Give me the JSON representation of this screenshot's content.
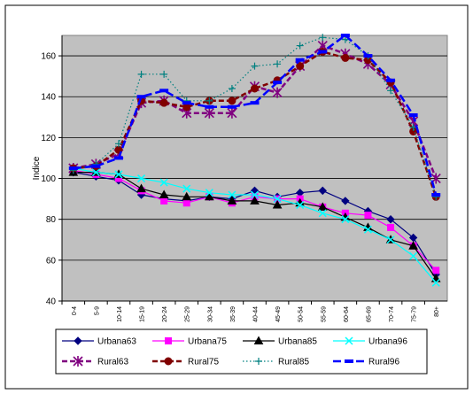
{
  "chart_data": {
    "type": "line",
    "ylabel": "Indice",
    "ylim": [
      40,
      170
    ],
    "yticks": [
      40,
      60,
      80,
      100,
      120,
      140,
      160
    ],
    "grid": true,
    "legend_position": "bottom",
    "categories": [
      "0-4",
      "5-9",
      "10-14",
      "15-19",
      "20-24",
      "25-29",
      "30-34",
      "35-39",
      "40-44",
      "45-49",
      "50-54",
      "55-59",
      "60-64",
      "65-69",
      "70-74",
      "75-79",
      "80+"
    ],
    "series": [
      {
        "name": "Urbana63",
        "color": "#000080",
        "style": "solid",
        "marker": "diamond",
        "values": [
          103,
          101,
          99,
          92,
          90,
          89,
          91,
          90,
          94,
          91,
          93,
          94,
          89,
          84,
          80,
          71,
          53
        ]
      },
      {
        "name": "Urbana75",
        "color": "#ff00ff",
        "style": "solid",
        "marker": "square",
        "values": [
          104,
          102,
          100,
          94,
          89,
          88,
          91,
          88,
          91,
          90,
          90,
          86,
          83,
          82,
          76,
          67,
          55
        ]
      },
      {
        "name": "Urbana85",
        "color": "#000000",
        "style": "solid",
        "marker": "triangle",
        "values": [
          103,
          103,
          102,
          95,
          92,
          91,
          91,
          89,
          89,
          87,
          88,
          86,
          81,
          76,
          70,
          67,
          51
        ]
      },
      {
        "name": "Urbana96",
        "color": "#00ffff",
        "style": "solid",
        "marker": "x",
        "values": [
          105,
          103,
          102,
          100,
          98,
          95,
          93,
          92,
          92,
          90,
          87,
          83,
          80,
          75,
          70,
          62,
          49
        ]
      },
      {
        "name": "Rural63",
        "color": "#800080",
        "style": "dashed",
        "marker": "star",
        "values": [
          105,
          107,
          112,
          137,
          138,
          132,
          132,
          132,
          145,
          142,
          155,
          165,
          161,
          156,
          146,
          128,
          100
        ]
      },
      {
        "name": "Rural75",
        "color": "#800000",
        "style": "dashed",
        "marker": "circle",
        "values": [
          105,
          106,
          114,
          138,
          137,
          135,
          138,
          138,
          144,
          148,
          155,
          162,
          159,
          158,
          147,
          123,
          91
        ]
      },
      {
        "name": "Rural85",
        "color": "#008080",
        "style": "dotted",
        "marker": "plus",
        "values": [
          104,
          107,
          117,
          151,
          151,
          138,
          138,
          144,
          155,
          156,
          165,
          169,
          168,
          160,
          143,
          125,
          91
        ]
      },
      {
        "name": "Rural96",
        "color": "#0000ff",
        "style": "longdash",
        "marker": "dash",
        "values": [
          105,
          106,
          110,
          140,
          143,
          137,
          135,
          135,
          137,
          147,
          158,
          162,
          170,
          160,
          148,
          131,
          92
        ]
      }
    ]
  }
}
